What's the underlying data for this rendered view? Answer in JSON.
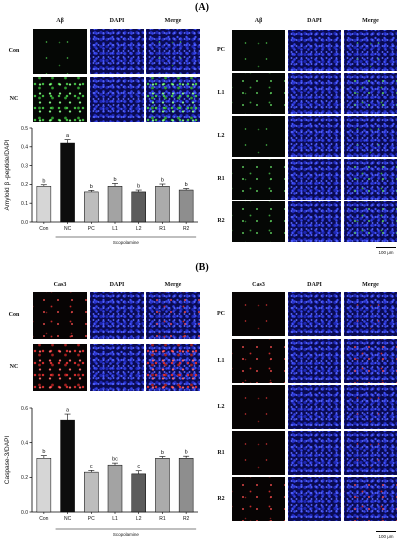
{
  "panels": [
    {
      "label": "(A)",
      "columns": [
        "Aβ",
        "DAPI",
        "Merge"
      ],
      "left_rows": [
        "Con",
        "NC"
      ],
      "right_rows": [
        "PC",
        "L1",
        "L2",
        "R1",
        "R2"
      ],
      "scale_bar": "100 μm"
    },
    {
      "label": "(B)",
      "columns": [
        "Cas3",
        "DAPI",
        "Merge"
      ],
      "left_rows": [
        "Con",
        "NC"
      ],
      "right_rows": [
        "PC",
        "L1",
        "L2",
        "R1",
        "R2"
      ],
      "scale_bar": "100 μm"
    }
  ],
  "chart_data": [
    {
      "type": "bar",
      "ylabel": "Amyloid β -peptide/DAPI",
      "categories": [
        "Con",
        "NC",
        "PC",
        "L1",
        "L2",
        "R1",
        "R2"
      ],
      "values": [
        0.19,
        0.42,
        0.16,
        0.19,
        0.16,
        0.19,
        0.17
      ],
      "errors": [
        0.008,
        0.018,
        0.008,
        0.015,
        0.01,
        0.012,
        0.008
      ],
      "letters": [
        "b",
        "a",
        "b",
        "b",
        "b",
        "b",
        "b"
      ],
      "yticks": [
        "0.0",
        "0.1",
        "0.2",
        "0.3",
        "0.4",
        "0.5"
      ],
      "ylim": [
        0,
        0.5
      ],
      "grid": false,
      "bar_colors": [
        "#d6d6d6",
        "#0d0d0d",
        "#bdbdbd",
        "#a3a3a3",
        "#5c5c5c",
        "#ababab",
        "#8e8e8e"
      ],
      "group_label": "Scopolamine",
      "group_span": [
        1,
        6
      ]
    },
    {
      "type": "bar",
      "ylabel": "Caspase-3/DAPI",
      "categories": [
        "Con",
        "NC",
        "PC",
        "L1",
        "L2",
        "R1",
        "R2"
      ],
      "values": [
        0.31,
        0.53,
        0.23,
        0.27,
        0.22,
        0.31,
        0.31
      ],
      "errors": [
        0.015,
        0.035,
        0.01,
        0.012,
        0.018,
        0.01,
        0.012
      ],
      "letters": [
        "b",
        "a",
        "c",
        "bc",
        "c",
        "b",
        "b"
      ],
      "yticks": [
        "0.0",
        "0.2",
        "0.4",
        "0.6"
      ],
      "ylim": [
        0,
        0.6
      ],
      "grid": false,
      "bar_colors": [
        "#d6d6d6",
        "#0d0d0d",
        "#bdbdbd",
        "#a3a3a3",
        "#5c5c5c",
        "#ababab",
        "#8e8e8e"
      ],
      "group_label": "Scopolamine",
      "group_span": [
        1,
        6
      ]
    }
  ]
}
